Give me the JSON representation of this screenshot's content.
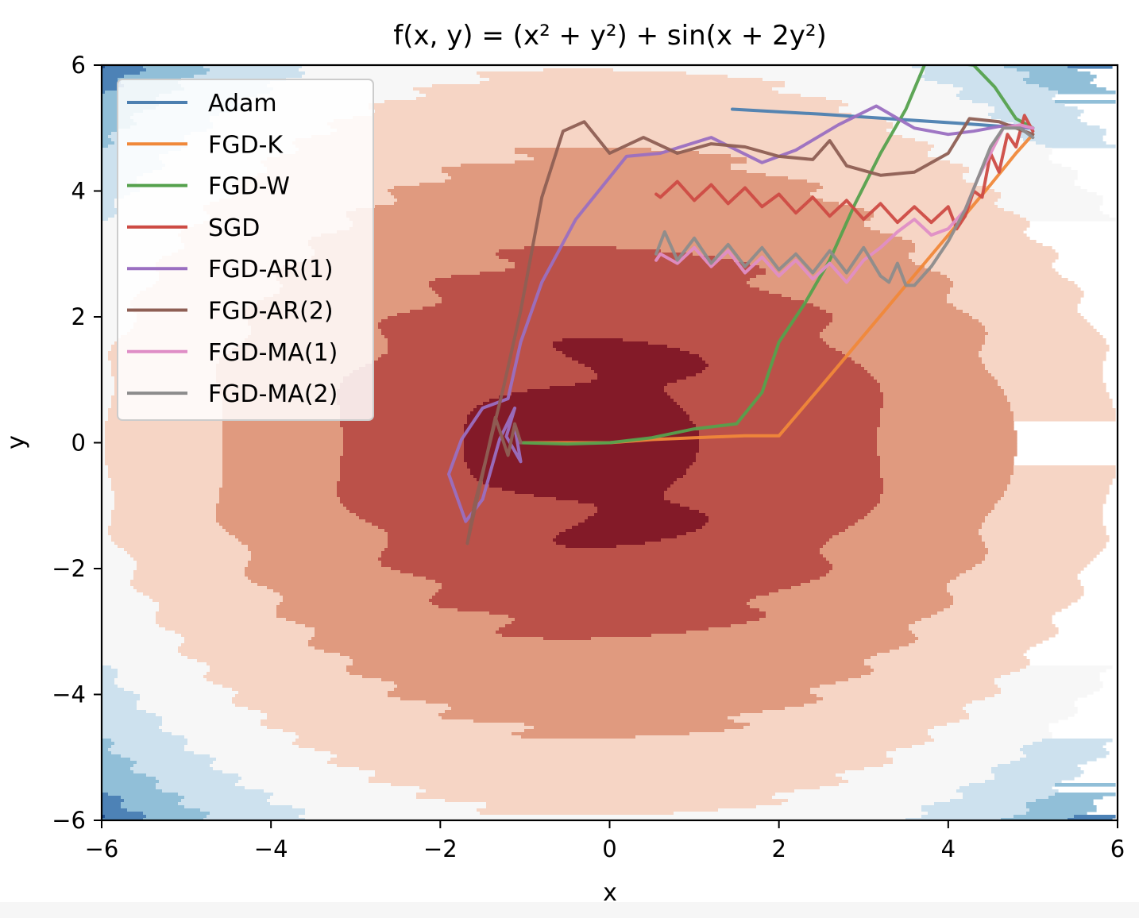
{
  "chart_data": {
    "type": "line",
    "title": "f(x, y) = (x² + y²) + sin(x + 2y²)",
    "xlabel": "x",
    "ylabel": "y",
    "xlim": [
      -6,
      6
    ],
    "ylim": [
      -6,
      6
    ],
    "xticks": [
      -6,
      -4,
      -2,
      0,
      2,
      4,
      6
    ],
    "yticks": [
      -6,
      -4,
      -2,
      0,
      2,
      4,
      6
    ],
    "xtick_labels": [
      "−6",
      "−4",
      "−2",
      "0",
      "2",
      "4",
      "6"
    ],
    "ytick_labels": [
      "−6",
      "−4",
      "−2",
      "0",
      "2",
      "4",
      "6"
    ],
    "grid": false,
    "legend_position": "top-left",
    "background": "filled contour of f(x, y) using a blue-white-red diverging colormap (dark red = low, dark blue = high)",
    "contour_colors": [
      "#831a28",
      "#bb5149",
      "#e09a7f",
      "#f6d5c5",
      "#f7f7f7",
      "#cde1ee",
      "#91bfd8",
      "#4d82b6",
      "#1e4e8f"
    ],
    "series": [
      {
        "name": "Adam",
        "color": "#4c7fb0",
        "x": [
          1.45,
          2.5,
          3.5,
          4.2,
          4.6,
          4.85,
          5.0
        ],
        "y": [
          5.3,
          5.22,
          5.13,
          5.07,
          5.03,
          5.01,
          5.0
        ]
      },
      {
        "name": "FGD-K",
        "color": "#f0883a",
        "x": [
          -1.05,
          -0.5,
          0.0,
          0.5,
          1.0,
          1.6,
          2.0,
          2.5,
          3.0,
          3.5,
          4.0,
          4.5,
          4.8,
          5.0
        ],
        "y": [
          0.0,
          0.0,
          0.0,
          0.05,
          0.08,
          0.11,
          0.11,
          0.9,
          1.7,
          2.5,
          3.3,
          4.1,
          4.6,
          4.9
        ]
      },
      {
        "name": "FGD-W",
        "color": "#55a14d",
        "x": [
          -1.05,
          -0.5,
          0.0,
          0.5,
          1.0,
          1.5,
          1.8,
          2.0,
          2.3,
          2.6,
          2.9,
          3.2,
          3.5,
          3.75,
          4.3,
          4.55,
          4.8,
          5.0
        ],
        "y": [
          0.0,
          -0.02,
          0.0,
          0.08,
          0.22,
          0.3,
          0.8,
          1.6,
          2.2,
          2.9,
          3.8,
          4.6,
          5.3,
          6.1,
          6.0,
          5.65,
          5.15,
          5.0
        ]
      },
      {
        "name": "SGD",
        "color": "#cd4b44",
        "x": [
          5.0,
          4.9,
          4.8,
          4.7,
          4.6,
          4.5,
          4.4,
          4.3,
          4.2,
          4.1,
          4.0,
          3.8,
          3.6,
          3.4,
          3.2,
          3.0,
          2.8,
          2.6,
          2.4,
          2.2,
          2.0,
          1.8,
          1.6,
          1.4,
          1.2,
          1.0,
          0.8,
          0.6,
          0.55
        ],
        "y": [
          4.95,
          5.2,
          4.7,
          4.9,
          4.3,
          4.6,
          3.9,
          4.0,
          3.6,
          3.4,
          3.75,
          3.5,
          3.75,
          3.5,
          3.8,
          3.55,
          3.85,
          3.6,
          3.9,
          3.65,
          3.95,
          3.75,
          4.05,
          3.8,
          4.1,
          3.85,
          4.15,
          3.9,
          3.95
        ]
      },
      {
        "name": "FGD-AR(1)",
        "color": "#9a6fc1",
        "x": [
          5.0,
          4.7,
          4.3,
          4.0,
          3.6,
          3.15,
          2.7,
          2.2,
          1.8,
          1.2,
          0.6,
          0.2,
          -0.4,
          -0.8,
          -1.05,
          -1.2,
          -1.5,
          -1.75,
          -1.9,
          -1.7,
          -1.5,
          -1.3,
          -1.12,
          -1.22,
          -1.05,
          -1.12,
          -1.05
        ],
        "y": [
          5.0,
          5.05,
          4.95,
          4.9,
          5.0,
          5.35,
          5.05,
          4.65,
          4.45,
          4.85,
          4.6,
          4.55,
          3.55,
          2.55,
          1.6,
          0.7,
          0.55,
          0.05,
          -0.5,
          -1.25,
          -0.9,
          0.05,
          0.55,
          0.1,
          -0.3,
          0.25,
          0.0
        ]
      },
      {
        "name": "FGD-AR(2)",
        "color": "#8e5f54",
        "x": [
          5.0,
          4.6,
          4.25,
          4.0,
          3.6,
          3.2,
          2.8,
          2.6,
          2.4,
          2.0,
          1.6,
          1.2,
          0.8,
          0.4,
          0.0,
          -0.3,
          -0.55,
          -0.8,
          -1.05,
          -1.25,
          -1.45,
          -1.6,
          -1.68,
          -1.55,
          -1.35,
          -1.2,
          -1.12,
          -1.05
        ],
        "y": [
          4.9,
          5.1,
          5.15,
          4.6,
          4.3,
          4.25,
          4.4,
          4.8,
          4.5,
          4.55,
          4.7,
          4.75,
          4.6,
          4.85,
          4.6,
          5.1,
          4.95,
          3.9,
          2.1,
          0.9,
          -0.2,
          -1.0,
          -1.6,
          -0.8,
          0.4,
          -0.2,
          0.3,
          0.0
        ]
      },
      {
        "name": "FGD-MA(1)",
        "color": "#df8ec6",
        "x": [
          5.0,
          4.85,
          4.65,
          4.5,
          4.35,
          4.2,
          4.0,
          3.8,
          3.6,
          3.4,
          3.2,
          3.0,
          2.8,
          2.6,
          2.4,
          2.2,
          2.0,
          1.8,
          1.6,
          1.4,
          1.2,
          1.0,
          0.8,
          0.6,
          0.55
        ],
        "y": [
          5.0,
          5.05,
          5.0,
          4.6,
          4.2,
          3.7,
          3.4,
          3.3,
          3.55,
          3.35,
          3.1,
          2.9,
          2.55,
          2.85,
          2.6,
          2.9,
          2.65,
          2.95,
          2.7,
          3.05,
          2.8,
          3.1,
          2.85,
          3.0,
          2.9
        ]
      },
      {
        "name": "FGD-MA(2)",
        "color": "#8c8c8c",
        "x": [
          5.0,
          4.85,
          4.65,
          4.5,
          4.35,
          4.2,
          4.0,
          3.8,
          3.6,
          3.5,
          3.4,
          3.3,
          3.2,
          3.0,
          2.8,
          2.6,
          2.4,
          2.2,
          2.0,
          1.8,
          1.6,
          1.4,
          1.2,
          1.0,
          0.8,
          0.65,
          0.55
        ],
        "y": [
          4.85,
          5.0,
          5.0,
          4.7,
          4.2,
          3.7,
          3.2,
          2.8,
          2.5,
          2.5,
          2.85,
          2.55,
          2.65,
          3.1,
          2.7,
          3.05,
          2.7,
          3.0,
          2.75,
          3.1,
          2.8,
          3.15,
          2.85,
          3.25,
          2.9,
          3.35,
          3.0
        ]
      }
    ]
  }
}
